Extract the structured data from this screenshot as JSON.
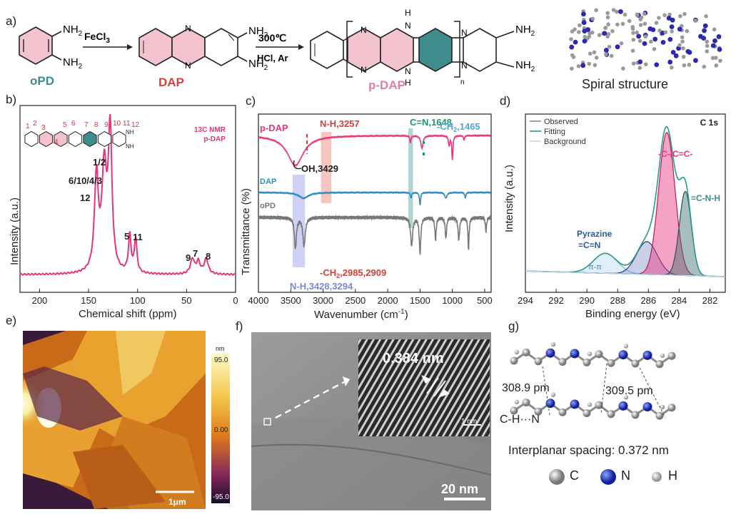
{
  "panels": {
    "a": "a)",
    "b": "b)",
    "c": "c)",
    "d": "d)",
    "e": "e)",
    "f": "f)",
    "g": "g)"
  },
  "scheme": {
    "nh2": "NH2",
    "nh2_sub": "2",
    "reagent1": "FeCl3",
    "temp": "300℃",
    "cond": "HCl, Ar",
    "nh": "H",
    "n_sub": "n",
    "opd": "oPD",
    "dap": "DAP",
    "pdap": "p-DAP",
    "spiral": "Spiral structure"
  },
  "colors": {
    "pink": "#e8347d",
    "teal": "#3e8c8c",
    "red": "#d43f3f",
    "blue": "#2a8cc0",
    "lightblue": "#55a3e0",
    "green": "#1a9a6a",
    "gray": "#6a6a6a"
  },
  "chart_data": [
    {
      "type": "line",
      "panel": "b",
      "title": "13C NMR p-DAP",
      "legend1": "13C NMR",
      "legend2": "p-DAP",
      "xlabel": "Chemical shift (ppm)",
      "ylabel": "Intensity (a.u.)",
      "xlim": [
        220,
        0
      ],
      "xticks": [
        "200",
        "150",
        "100",
        "50",
        "0"
      ],
      "peaks": [
        {
          "label": "1/2",
          "x": 128
        },
        {
          "label": "6/10/4/3",
          "x": 133
        },
        {
          "label": "12",
          "x": 142
        },
        {
          "label": "5",
          "x": 108
        },
        {
          "label": "11",
          "x": 102
        },
        {
          "label": "9",
          "x": 44
        },
        {
          "label": "7",
          "x": 38
        },
        {
          "label": "8",
          "x": 30
        }
      ],
      "inset_numbers": [
        "1",
        "2",
        "3",
        "4",
        "5",
        "6",
        "7",
        "8",
        "9",
        "10",
        "11",
        "12"
      ]
    },
    {
      "type": "line",
      "panel": "c",
      "xlabel": "Wavenumber (cm",
      "xlabel_sup": "-1",
      "xlabel_end": ")",
      "ylabel": "Transmittance (%)",
      "xlim": [
        4000,
        400
      ],
      "xticks": [
        "4000",
        "3500",
        "3000",
        "2500",
        "2000",
        "1500",
        "1000",
        "500"
      ],
      "series": [
        {
          "name": "p-DAP"
        },
        {
          "name": "DAP"
        },
        {
          "name": "oPD"
        }
      ],
      "annotations": {
        "nh3257": "N-H,3257",
        "cn": "C=N,1648",
        "ch2": "-CH",
        "ch2_sub": "2",
        "ch2_end": ",1465",
        "oh": "OH,3429",
        "ch2b": "-CH",
        "ch2b_end": ",2985,2909",
        "nh2": "N-H,3428,3294"
      }
    },
    {
      "type": "line",
      "panel": "d",
      "title": "C 1s",
      "xlabel": "Binding energy (eV)",
      "ylabel": "Intensity (a.u.)",
      "xlim": [
        294,
        281
      ],
      "xticks": [
        "294",
        "292",
        "290",
        "288",
        "286",
        "284",
        "282"
      ],
      "legend": [
        "Observed",
        "Fitting",
        "Background"
      ],
      "components": [
        {
          "name": "π-π",
          "center": 288.8
        },
        {
          "name": "Pyrazine =C=N",
          "center": 286.1,
          "label1": "Pyrazine",
          "label2": "=C=N"
        },
        {
          "name": "-C-/C=C-",
          "center": 284.8
        },
        {
          "name": "=C-N-H",
          "center": 283.6
        }
      ]
    }
  ],
  "afm": {
    "unit": "nm",
    "max": "95.0",
    "mid": "0.00",
    "min": "-95.0",
    "scalebar": "1μm"
  },
  "tem": {
    "spacing": "0.384 nm",
    "inset_scale": "1 nm",
    "scale": "20 nm"
  },
  "model": {
    "d1": "308.9 pm",
    "d2": "309.5 pm",
    "bond": "C-H···N",
    "interplanar": "Interplanar spacing: 0.372 nm",
    "legend_c": "C",
    "legend_n": "N",
    "legend_h": "H"
  }
}
